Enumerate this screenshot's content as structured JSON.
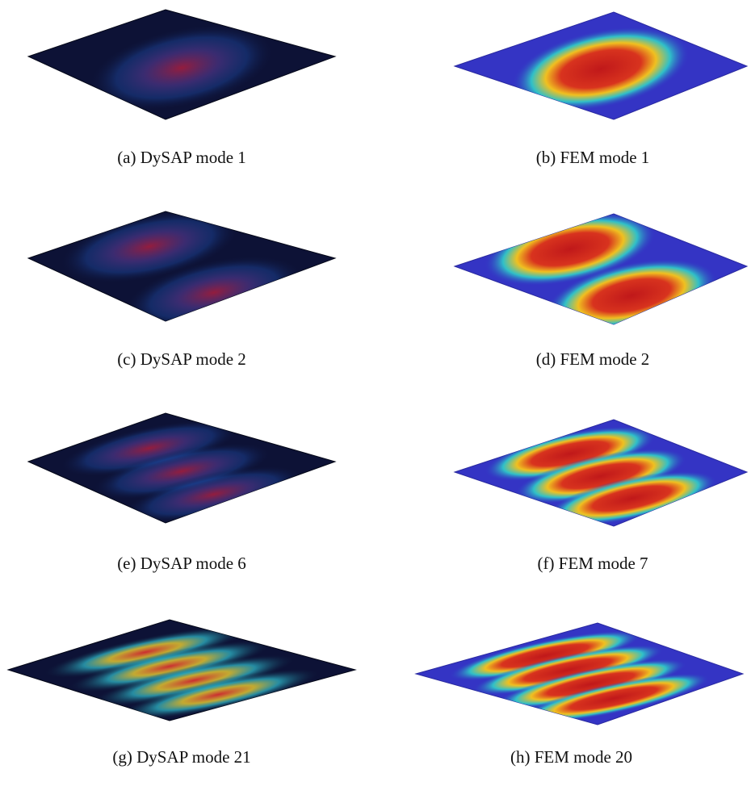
{
  "panels": [
    {
      "caption": "(a) DySAP mode 1"
    },
    {
      "caption": "(b) FEM mode 1"
    },
    {
      "caption": "(c) DySAP mode 2"
    },
    {
      "caption": "(d) FEM mode 2"
    },
    {
      "caption": "(e) DySAP mode 6"
    },
    {
      "caption": "(f) FEM mode 7"
    },
    {
      "caption": "(g) DySAP mode 21"
    },
    {
      "caption": "(h) FEM mode 20"
    }
  ]
}
